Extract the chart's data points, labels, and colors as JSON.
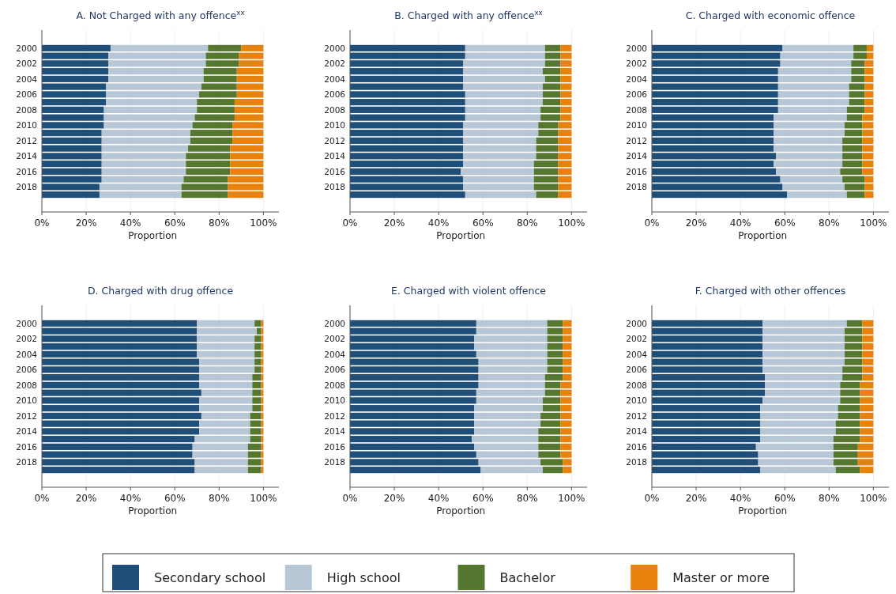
{
  "chart_data": [
    {
      "type": "bar",
      "orientation": "horizontal",
      "stacked": true,
      "title": "A. Not Charged with any offence$^{xx}$",
      "xlabel": "Proportion",
      "xlim": [
        0,
        107
      ],
      "xticks": [
        {
          "value": 0,
          "label": "0%"
        },
        {
          "value": 20,
          "label": "20%"
        },
        {
          "value": 40,
          "label": "40%"
        },
        {
          "value": 60,
          "label": "60%"
        },
        {
          "value": 80,
          "label": "80%"
        },
        {
          "value": 100,
          "label": "100%"
        }
      ],
      "grid": "x",
      "legend": "bottom",
      "categories": [
        "2000",
        null,
        "2002",
        null,
        "2004",
        null,
        "2006",
        null,
        "2008",
        null,
        "2010",
        null,
        "2012",
        null,
        "2014",
        null,
        "2016",
        null,
        "2018",
        null
      ],
      "series": [
        {
          "name": "Secondary school",
          "color": "#1f4e79",
          "values": [
            31,
            30,
            30,
            30,
            30,
            29,
            29,
            29,
            28,
            28,
            28,
            27,
            27,
            27,
            27,
            27,
            27,
            27,
            26,
            26
          ]
        },
        {
          "name": "High school",
          "color": "#b8c7d6",
          "values": [
            44,
            44,
            44,
            43,
            43,
            43,
            42,
            41,
            42,
            41,
            40,
            40,
            40,
            39,
            38,
            38,
            38,
            37,
            37,
            37
          ]
        },
        {
          "name": "Bachelor",
          "color": "#56772f",
          "values": [
            15,
            15,
            15,
            15,
            15,
            16,
            17,
            17,
            17,
            18,
            18,
            19,
            19,
            19,
            20,
            20,
            20,
            20,
            21,
            21
          ]
        },
        {
          "name": "Master or more",
          "color": "#e8820c",
          "values": [
            10,
            11,
            11,
            12,
            12,
            12,
            12,
            13,
            13,
            13,
            14,
            14,
            14,
            15,
            15,
            15,
            15,
            16,
            16,
            16
          ]
        }
      ]
    },
    {
      "type": "bar",
      "orientation": "horizontal",
      "stacked": true,
      "title": "B. Charged with any offence$^{xx}$",
      "xlabel": "Proportion",
      "xlim": [
        0,
        107
      ],
      "xticks": [
        {
          "value": 0,
          "label": "0%"
        },
        {
          "value": 20,
          "label": "20%"
        },
        {
          "value": 40,
          "label": "40%"
        },
        {
          "value": 60,
          "label": "60%"
        },
        {
          "value": 80,
          "label": "80%"
        },
        {
          "value": 100,
          "label": "100%"
        }
      ],
      "grid": "x",
      "categories": [
        "2000",
        null,
        "2002",
        null,
        "2004",
        null,
        "2006",
        null,
        "2008",
        null,
        "2010",
        null,
        "2012",
        null,
        "2014",
        null,
        "2016",
        null,
        "2018",
        null
      ],
      "series": [
        {
          "color": "#1f4e79",
          "values": [
            52,
            52,
            51,
            51,
            51,
            51,
            52,
            52,
            52,
            52,
            51,
            51,
            51,
            51,
            51,
            51,
            50,
            51,
            51,
            52
          ]
        },
        {
          "color": "#b8c7d6",
          "values": [
            36,
            36,
            37,
            36,
            37,
            36,
            35,
            35,
            34,
            34,
            34,
            34,
            33,
            33,
            33,
            32,
            33,
            32,
            32,
            32
          ]
        },
        {
          "color": "#56772f",
          "values": [
            7,
            7,
            7,
            8,
            7,
            8,
            8,
            8,
            9,
            9,
            9,
            9,
            10,
            10,
            10,
            11,
            11,
            11,
            11,
            10
          ]
        },
        {
          "color": "#e8820c",
          "values": [
            5,
            5,
            5,
            5,
            5,
            5,
            5,
            5,
            5,
            5,
            6,
            6,
            6,
            6,
            6,
            6,
            6,
            6,
            6,
            6
          ]
        }
      ]
    },
    {
      "type": "bar",
      "orientation": "horizontal",
      "stacked": true,
      "title": "C. Charged with economic offence",
      "xlabel": "Proportion",
      "xlim": [
        0,
        107
      ],
      "xticks": [
        {
          "value": 0,
          "label": "0%"
        },
        {
          "value": 20,
          "label": "20%"
        },
        {
          "value": 40,
          "label": "40%"
        },
        {
          "value": 60,
          "label": "60%"
        },
        {
          "value": 80,
          "label": "80%"
        },
        {
          "value": 100,
          "label": "100%"
        }
      ],
      "grid": "x",
      "categories": [
        "2000",
        null,
        "2002",
        null,
        "2004",
        null,
        "2006",
        null,
        "2008",
        null,
        "2010",
        null,
        "2012",
        null,
        "2014",
        null,
        "2016",
        null,
        "2018",
        null
      ],
      "series": [
        {
          "color": "#1f4e79",
          "values": [
            59,
            58,
            58,
            57,
            57,
            57,
            57,
            57,
            57,
            55,
            55,
            55,
            55,
            55,
            56,
            55,
            56,
            58,
            59,
            61
          ]
        },
        {
          "color": "#b8c7d6",
          "values": [
            32,
            33,
            32,
            33,
            33,
            32,
            32,
            32,
            31,
            33,
            32,
            32,
            31,
            31,
            30,
            31,
            29,
            28,
            28,
            27
          ]
        },
        {
          "color": "#56772f",
          "values": [
            6,
            6,
            6,
            6,
            6,
            7,
            7,
            7,
            8,
            7,
            8,
            8,
            9,
            9,
            9,
            9,
            10,
            10,
            9,
            8
          ]
        },
        {
          "color": "#e8820c",
          "values": [
            3,
            3,
            4,
            4,
            4,
            4,
            4,
            4,
            4,
            5,
            5,
            5,
            5,
            5,
            5,
            5,
            5,
            4,
            4,
            4
          ]
        }
      ]
    },
    {
      "type": "bar",
      "orientation": "horizontal",
      "stacked": true,
      "title": "D. Charged with drug offence",
      "xlabel": "Proportion",
      "xlim": [
        0,
        107
      ],
      "xticks": [
        {
          "value": 0,
          "label": "0%"
        },
        {
          "value": 20,
          "label": "20%"
        },
        {
          "value": 40,
          "label": "40%"
        },
        {
          "value": 60,
          "label": "60%"
        },
        {
          "value": 80,
          "label": "80%"
        },
        {
          "value": 100,
          "label": "100%"
        }
      ],
      "grid": "x",
      "categories": [
        "2000",
        null,
        "2002",
        null,
        "2004",
        null,
        "2006",
        null,
        "2008",
        null,
        "2010",
        null,
        "2012",
        null,
        "2014",
        null,
        "2016",
        null,
        "2018",
        null
      ],
      "series": [
        {
          "color": "#1f4e79",
          "values": [
            70,
            70,
            70,
            70,
            70,
            71,
            71,
            71,
            71,
            72,
            71,
            71,
            72,
            71,
            71,
            69,
            68,
            68,
            69,
            69
          ]
        },
        {
          "color": "#b8c7d6",
          "values": [
            26,
            27,
            26,
            26,
            26,
            25,
            25,
            24,
            24,
            23,
            24,
            24,
            22,
            23,
            23,
            25,
            25,
            25,
            24,
            24
          ]
        },
        {
          "color": "#56772f",
          "values": [
            3,
            2,
            3,
            3,
            3,
            3,
            3,
            4,
            4,
            4,
            4,
            4,
            5,
            5,
            5,
            5,
            6,
            6,
            6,
            6
          ]
        },
        {
          "color": "#e8820c",
          "values": [
            1,
            1,
            1,
            1,
            1,
            1,
            1,
            1,
            1,
            1,
            1,
            1,
            1,
            1,
            1,
            1,
            1,
            1,
            1,
            1
          ]
        }
      ]
    },
    {
      "type": "bar",
      "orientation": "horizontal",
      "stacked": true,
      "title": "E. Charged with violent offence",
      "xlabel": "Proportion",
      "xlim": [
        0,
        107
      ],
      "xticks": [
        {
          "value": 0,
          "label": "0%"
        },
        {
          "value": 20,
          "label": "20%"
        },
        {
          "value": 40,
          "label": "40%"
        },
        {
          "value": 60,
          "label": "60%"
        },
        {
          "value": 80,
          "label": "80%"
        },
        {
          "value": 100,
          "label": "100%"
        }
      ],
      "grid": "x",
      "categories": [
        "2000",
        null,
        "2002",
        null,
        "2004",
        null,
        "2006",
        null,
        "2008",
        null,
        "2010",
        null,
        "2012",
        null,
        "2014",
        null,
        "2016",
        null,
        "2018",
        null
      ],
      "series": [
        {
          "color": "#1f4e79",
          "values": [
            57,
            57,
            56,
            56,
            57,
            58,
            58,
            58,
            58,
            57,
            57,
            56,
            56,
            56,
            56,
            55,
            56,
            57,
            58,
            59
          ]
        },
        {
          "color": "#b8c7d6",
          "values": [
            32,
            32,
            33,
            33,
            32,
            31,
            31,
            30,
            30,
            31,
            30,
            31,
            30,
            30,
            29,
            30,
            29,
            28,
            28,
            28
          ]
        },
        {
          "color": "#56772f",
          "values": [
            7,
            7,
            7,
            7,
            7,
            7,
            7,
            8,
            7,
            7,
            8,
            8,
            9,
            9,
            10,
            10,
            10,
            10,
            10,
            9
          ]
        },
        {
          "color": "#e8820c",
          "values": [
            4,
            4,
            4,
            4,
            4,
            4,
            4,
            4,
            5,
            5,
            5,
            5,
            5,
            5,
            5,
            5,
            5,
            5,
            4,
            4
          ]
        }
      ]
    },
    {
      "type": "bar",
      "orientation": "horizontal",
      "stacked": true,
      "title": "F. Charged with other offences",
      "xlabel": "Proportion",
      "xlim": [
        0,
        107
      ],
      "xticks": [
        {
          "value": 0,
          "label": "0%"
        },
        {
          "value": 20,
          "label": "20%"
        },
        {
          "value": 40,
          "label": "40%"
        },
        {
          "value": 60,
          "label": "60%"
        },
        {
          "value": 80,
          "label": "80%"
        },
        {
          "value": 100,
          "label": "100%"
        }
      ],
      "grid": "x",
      "categories": [
        "2000",
        null,
        "2002",
        null,
        "2004",
        null,
        "2006",
        null,
        "2008",
        null,
        "2010",
        null,
        "2012",
        null,
        "2014",
        null,
        "2016",
        null,
        "2018",
        null
      ],
      "series": [
        {
          "color": "#1f4e79",
          "values": [
            50,
            50,
            50,
            50,
            50,
            50,
            50,
            51,
            51,
            51,
            50,
            49,
            49,
            49,
            49,
            49,
            47,
            48,
            48,
            49
          ]
        },
        {
          "color": "#b8c7d6",
          "values": [
            38,
            37,
            37,
            37,
            37,
            37,
            36,
            35,
            34,
            34,
            35,
            35,
            35,
            34,
            34,
            33,
            35,
            34,
            34,
            34
          ]
        },
        {
          "color": "#56772f",
          "values": [
            7,
            8,
            8,
            8,
            8,
            8,
            9,
            9,
            9,
            9,
            9,
            10,
            10,
            11,
            11,
            12,
            11,
            11,
            11,
            11
          ]
        },
        {
          "color": "#e8820c",
          "values": [
            5,
            5,
            5,
            5,
            5,
            5,
            5,
            5,
            6,
            6,
            6,
            6,
            6,
            6,
            6,
            6,
            7,
            7,
            7,
            6
          ]
        }
      ]
    }
  ]
}
